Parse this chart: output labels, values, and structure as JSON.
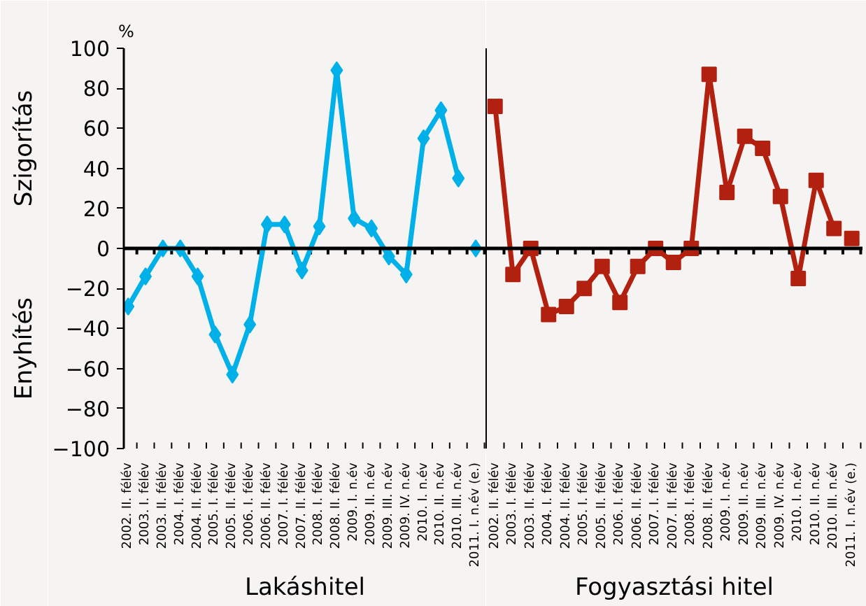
{
  "chart_data": [
    {
      "type": "line",
      "xlabel": "Lakáshitel",
      "categories": [
        "2002. II. félév",
        "2003. I. félév",
        "2003. II. félév",
        "2004. I. félév",
        "2004. II. félév",
        "2005. I. félév",
        "2005. II. félév",
        "2006. I. félév",
        "2006. II. félév",
        "2007. I. félév",
        "2007. II. félév",
        "2008. I. félév",
        "2008. II. félév",
        "2009. I. n.év",
        "2009. II. n.év",
        "2009. III. n.év",
        "2009. IV. n.év",
        "2010. I. n.év",
        "2010. II. n.év",
        "2010. III. n.év",
        "2011. I. n.év (e.)"
      ],
      "series": [
        {
          "type": "line",
          "marker": "diamond",
          "color": "#00b0e8",
          "values": [
            -29,
            -14,
            0,
            0,
            -14,
            -43,
            -63,
            -38,
            12,
            12,
            -11,
            11,
            89,
            15,
            10,
            -4,
            -13,
            55,
            69,
            35,
            null
          ]
        },
        {
          "type": "scatter",
          "marker": "diamond",
          "color": "#00b0e8",
          "values": [
            null,
            null,
            null,
            null,
            null,
            null,
            null,
            null,
            null,
            null,
            null,
            null,
            null,
            null,
            null,
            null,
            null,
            null,
            null,
            null,
            0
          ]
        }
      ],
      "ylim": [
        -100,
        100
      ],
      "yticks": [
        100,
        80,
        60,
        40,
        20,
        0,
        -20,
        -40,
        -60,
        -80,
        {
          "value": -100,
          "label": "−100"
        }
      ],
      "ref_lines": [
        {
          "axis": "y",
          "value": 0,
          "color": "#000000"
        }
      ],
      "annotations": [
        "Szigorítás",
        "Enyhítés",
        "%"
      ],
      "grid": false
    },
    {
      "type": "line",
      "xlabel": "Fogyasztási hitel",
      "categories": [
        "2002. II. félév",
        "2003. I. félév",
        "2003. II. félév",
        "2004. I. félév",
        "2004. II. félév",
        "2005. I. félév",
        "2005. II. félév",
        "2006. I. félév",
        "2006. II. félév",
        "2007. I. félév",
        "2007. II. félév",
        "2008. I. félév",
        "2008. II. félév",
        "2009. I. n.év",
        "2009. II. n.év",
        "2009. III. n.év",
        "2009. IV. n.év",
        "2010. I. n.év",
        "2010. II. n.év",
        "2010. III. n.év",
        "2011. I. n.év (e.)"
      ],
      "series": [
        {
          "type": "line",
          "marker": "square",
          "color": "#b22010",
          "values": [
            71,
            -13,
            0,
            -33,
            -29,
            -20,
            -9,
            -27,
            -9,
            0,
            -7,
            0,
            87,
            28,
            56,
            50,
            26,
            -15,
            34,
            10,
            null
          ]
        },
        {
          "type": "scatter",
          "marker": "square",
          "color": "#b22010",
          "values": [
            null,
            null,
            null,
            null,
            null,
            null,
            null,
            null,
            null,
            null,
            null,
            null,
            null,
            null,
            null,
            null,
            null,
            null,
            null,
            null,
            5
          ]
        }
      ],
      "ylim": [
        -100,
        100
      ],
      "ref_lines": [
        {
          "axis": "y",
          "value": 0,
          "color": "#000000"
        }
      ],
      "tick_labels": "x",
      "grid": false
    }
  ]
}
